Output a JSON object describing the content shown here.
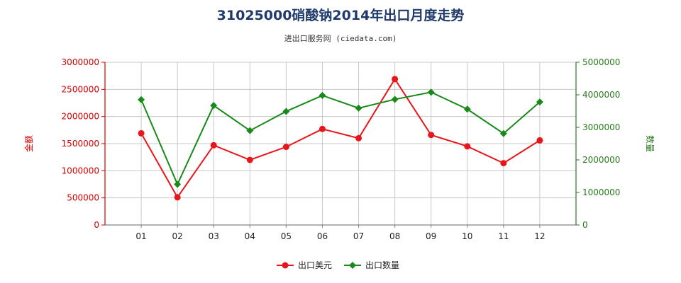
{
  "chart_data": {
    "type": "line",
    "title": "31025000硝酸钠2014年出口月度走势",
    "subtitle": "进出口服务网 (ciedata.com)",
    "categories": [
      "01",
      "02",
      "03",
      "04",
      "05",
      "06",
      "07",
      "08",
      "09",
      "10",
      "11",
      "12"
    ],
    "y_left": {
      "label": "金额",
      "range": [
        0,
        3000000
      ],
      "ticks": [
        0,
        500000,
        1000000,
        1500000,
        2000000,
        2500000,
        3000000
      ]
    },
    "y_right": {
      "label": "数量",
      "range": [
        0,
        5000000
      ],
      "ticks": [
        0,
        1000000,
        2000000,
        3000000,
        4000000,
        5000000
      ]
    },
    "grid": true,
    "legend_position": "bottom",
    "series": [
      {
        "name": "出口美元",
        "axis": "left",
        "color": "#e8151b",
        "marker": "circle",
        "values": [
          1690000,
          510000,
          1470000,
          1200000,
          1440000,
          1770000,
          1600000,
          2690000,
          1660000,
          1450000,
          1140000,
          1560000
        ]
      },
      {
        "name": "出口数量",
        "axis": "right",
        "color": "#178a1a",
        "marker": "diamond",
        "values": [
          3850000,
          1250000,
          3670000,
          2900000,
          3490000,
          3980000,
          3590000,
          3860000,
          4080000,
          3560000,
          2810000,
          3780000
        ]
      }
    ]
  }
}
